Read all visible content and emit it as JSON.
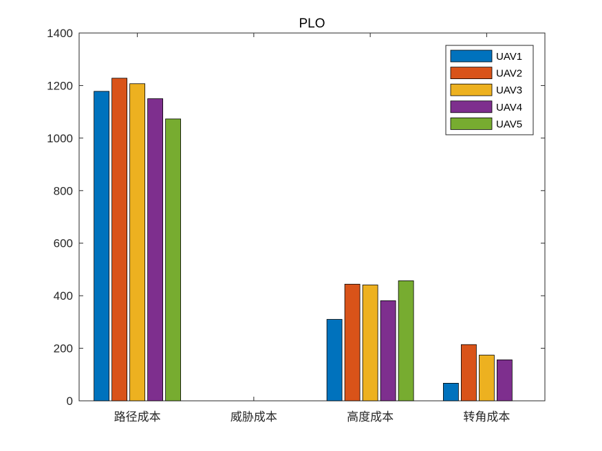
{
  "chart_data": {
    "type": "bar",
    "title": "PLO",
    "xlabel": "",
    "ylabel": "",
    "categories": [
      "路径成本",
      "威胁成本",
      "高度成本",
      "转角成本"
    ],
    "ylim": [
      0,
      1400
    ],
    "yticks": [
      0,
      200,
      400,
      600,
      800,
      1000,
      1200,
      1400
    ],
    "grid": false,
    "legend_position": "top-right",
    "series": [
      {
        "name": "UAV1",
        "color": "#0072BD",
        "values": [
          1178,
          0,
          310,
          67
        ]
      },
      {
        "name": "UAV2",
        "color": "#D95319",
        "values": [
          1228,
          0,
          444,
          214
        ]
      },
      {
        "name": "UAV3",
        "color": "#EDB120",
        "values": [
          1207,
          0,
          441,
          174
        ]
      },
      {
        "name": "UAV4",
        "color": "#7E2F8E",
        "values": [
          1150,
          0,
          381,
          156
        ]
      },
      {
        "name": "UAV5",
        "color": "#77AC30",
        "values": [
          1073,
          0,
          457,
          0
        ]
      }
    ]
  }
}
